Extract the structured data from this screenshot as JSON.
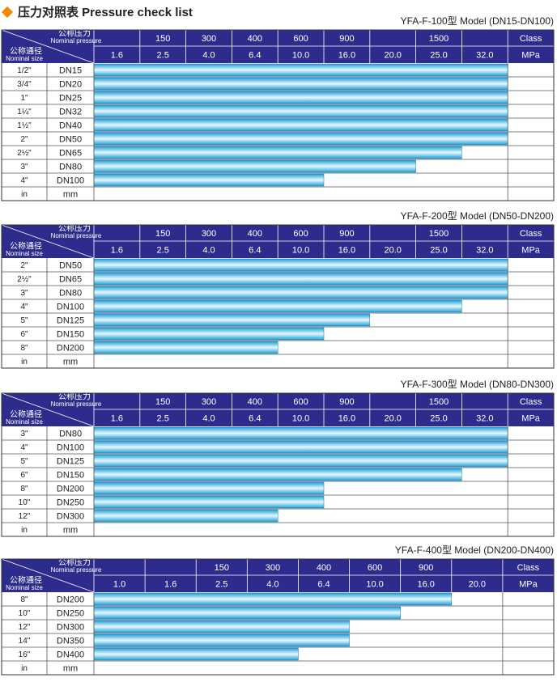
{
  "header": {
    "title": "压力对照表 Pressure check list"
  },
  "tables": [
    {
      "model": "YFA-F-100型  Model (DN15-DN100)",
      "corner": {
        "pressure_cn": "公称压力",
        "pressure_en": "Nominal pressure",
        "size_cn": "公称通径",
        "size_en": "Nominal size"
      },
      "class_row": [
        null,
        "150",
        "300",
        "400",
        "600",
        "900",
        null,
        "1500",
        null,
        "Class"
      ],
      "mpa_row": [
        "1.6",
        "2.5",
        "4.0",
        "6.4",
        "10.0",
        "16.0",
        "20.0",
        "25.0",
        "32.0",
        "MPa"
      ],
      "rows": [
        {
          "size": "1/2\"",
          "dn": "DN15",
          "max_mpa": 32
        },
        {
          "size": "3/4\"",
          "dn": "DN20",
          "max_mpa": 32
        },
        {
          "size": "1\"",
          "dn": "DN25",
          "max_mpa": 32
        },
        {
          "size": "1¼\"",
          "dn": "DN32",
          "max_mpa": 32
        },
        {
          "size": "1½\"",
          "dn": "DN40",
          "max_mpa": 32
        },
        {
          "size": "2\"",
          "dn": "DN50",
          "max_mpa": 32
        },
        {
          "size": "2½\"",
          "dn": "DN65",
          "max_mpa": 25
        },
        {
          "size": "3\"",
          "dn": "DN80",
          "max_mpa": 20
        },
        {
          "size": "4\"",
          "dn": "DN100",
          "max_mpa": 10
        },
        {
          "size": "in",
          "dn": "mm"
        }
      ]
    },
    {
      "model": "YFA-F-200型  Model (DN50-DN200)",
      "corner": {
        "pressure_cn": "公称压力",
        "pressure_en": "Nominal pressure",
        "size_cn": "公称通径",
        "size_en": "Nominal size"
      },
      "class_row": [
        null,
        "150",
        "300",
        "400",
        "600",
        "900",
        null,
        "1500",
        null,
        "Class"
      ],
      "mpa_row": [
        "1.6",
        "2.5",
        "4.0",
        "6.4",
        "10.0",
        "16.0",
        "20.0",
        "25.0",
        "32.0",
        "MPa"
      ],
      "rows": [
        {
          "size": "2\"",
          "dn": "DN50",
          "max_mpa": 32
        },
        {
          "size": "2½\"",
          "dn": "DN65",
          "max_mpa": 32
        },
        {
          "size": "3\"",
          "dn": "DN80",
          "max_mpa": 32
        },
        {
          "size": "4\"",
          "dn": "DN100",
          "max_mpa": 25
        },
        {
          "size": "5\"",
          "dn": "DN125",
          "max_mpa": 16
        },
        {
          "size": "6\"",
          "dn": "DN150",
          "max_mpa": 10
        },
        {
          "size": "8\"",
          "dn": "DN200",
          "max_mpa": 6.4
        },
        {
          "size": "in",
          "dn": "mm"
        }
      ]
    },
    {
      "model": "YFA-F-300型  Model (DN80-DN300)",
      "corner": {
        "pressure_cn": "公称压力",
        "pressure_en": "Nominal pressure",
        "size_cn": "公称通径",
        "size_en": "Nominal size"
      },
      "class_row": [
        null,
        "150",
        "300",
        "400",
        "600",
        "900",
        null,
        "1500",
        null,
        "Class"
      ],
      "mpa_row": [
        "1.6",
        "2.5",
        "4.0",
        "6.4",
        "10.0",
        "16.0",
        "20.0",
        "25.0",
        "32.0",
        "MPa"
      ],
      "rows": [
        {
          "size": "3\"",
          "dn": "DN80",
          "max_mpa": 32
        },
        {
          "size": "4\"",
          "dn": "DN100",
          "max_mpa": 32
        },
        {
          "size": "5\"",
          "dn": "DN125",
          "max_mpa": 32
        },
        {
          "size": "6\"",
          "dn": "DN150",
          "max_mpa": 25
        },
        {
          "size": "8\"",
          "dn": "DN200",
          "max_mpa": 10
        },
        {
          "size": "10\"",
          "dn": "DN250",
          "max_mpa": 10
        },
        {
          "size": "12\"",
          "dn": "DN300",
          "max_mpa": 6.4
        },
        {
          "size": "in",
          "dn": "mm"
        }
      ]
    },
    {
      "model": "YFA-F-400型  Model (DN200-DN400)",
      "corner": {
        "pressure_cn": "公称压力",
        "pressure_en": "Nominal pressure",
        "size_cn": "公称通径",
        "size_en": "Nominal size"
      },
      "class_row": [
        null,
        null,
        "150",
        "300",
        "400",
        "600",
        "900",
        null,
        "Class"
      ],
      "mpa_row": [
        "1.0",
        "1.6",
        "2.5",
        "4.0",
        "6.4",
        "10.0",
        "16.0",
        "20.0",
        "MPa"
      ],
      "rows": [
        {
          "size": "8\"",
          "dn": "DN200",
          "max_mpa": 16
        },
        {
          "size": "10\"",
          "dn": "DN250",
          "max_mpa": 10
        },
        {
          "size": "12\"",
          "dn": "DN300",
          "max_mpa": 6.4
        },
        {
          "size": "14\"",
          "dn": "DN350",
          "max_mpa": 6.4
        },
        {
          "size": "16\"",
          "dn": "DN400",
          "max_mpa": 4
        },
        {
          "size": "in",
          "dn": "mm"
        }
      ]
    }
  ]
}
